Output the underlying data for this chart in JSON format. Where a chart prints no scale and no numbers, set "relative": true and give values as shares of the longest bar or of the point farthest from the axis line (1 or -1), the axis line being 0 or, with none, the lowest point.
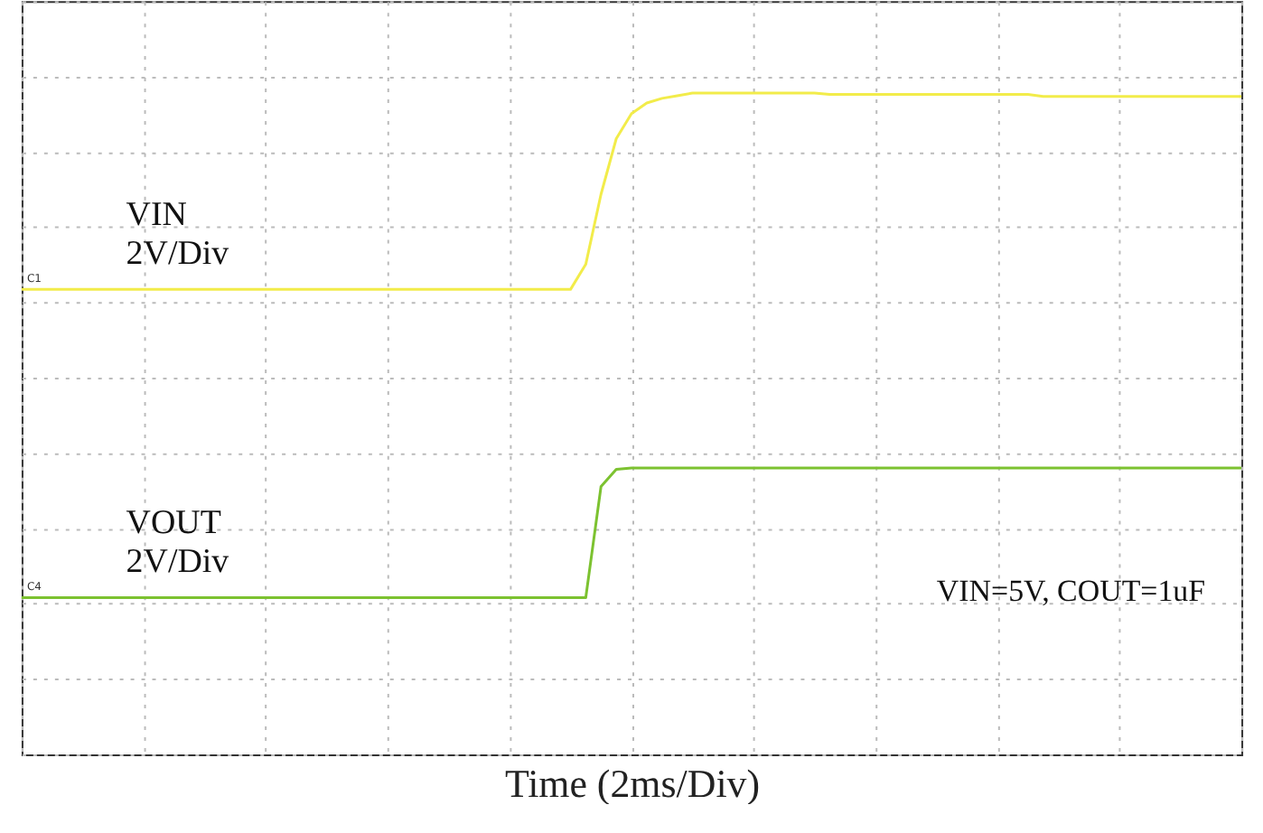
{
  "chart_data": {
    "type": "line",
    "relative": true,
    "xlabel": "Time (2ms/Div)",
    "categories": [
      null,
      null,
      null,
      null,
      null,
      null,
      null,
      null,
      null,
      null,
      null,
      null,
      null,
      null,
      null,
      null,
      null,
      null,
      null,
      null,
      null,
      null,
      null,
      null,
      null,
      null,
      null,
      null,
      null,
      null,
      null,
      null,
      null,
      null,
      null,
      null,
      null,
      null,
      null,
      null,
      null,
      null,
      null,
      null,
      null,
      null,
      null,
      null,
      null,
      null,
      null,
      null,
      null,
      null,
      null,
      null,
      null,
      null,
      null,
      null,
      null,
      null,
      null,
      null,
      null,
      null,
      null,
      null,
      null,
      null,
      null,
      null,
      null,
      null,
      null,
      null,
      null,
      null,
      null,
      null,
      null
    ],
    "grid": true,
    "line_style": "solid",
    "marker": "none",
    "series": [
      {
        "name": "VIN\n2V/Div",
        "color": "#f2ec4a",
        "values": [
          0.703,
          0.703,
          0.703,
          0.703,
          0.703,
          0.703,
          0.703,
          0.703,
          0.703,
          0.703,
          0.703,
          0.703,
          0.703,
          0.703,
          0.703,
          0.703,
          0.703,
          0.703,
          0.703,
          0.703,
          0.703,
          0.703,
          0.703,
          0.703,
          0.703,
          0.703,
          0.703,
          0.703,
          0.703,
          0.703,
          0.703,
          0.703,
          0.703,
          0.703,
          0.703,
          0.703,
          0.703,
          0.741,
          0.847,
          0.931,
          0.969,
          0.985,
          0.992,
          0.996,
          1,
          1,
          1,
          1,
          1,
          1,
          1,
          1,
          1,
          0.998,
          0.998,
          0.998,
          0.998,
          0.998,
          0.998,
          0.998,
          0.998,
          0.998,
          0.998,
          0.998,
          0.998,
          0.998,
          0.998,
          0.995,
          0.995,
          0.995,
          0.995,
          0.995,
          0.995,
          0.995,
          0.995,
          0.995,
          0.995,
          0.995,
          0.995,
          0.995,
          0.995
        ]
      },
      {
        "name": "VOUT\n2V/Div",
        "color": "#7cc230",
        "values": [
          0.237,
          0.237,
          0.237,
          0.237,
          0.237,
          0.237,
          0.237,
          0.237,
          0.237,
          0.237,
          0.237,
          0.237,
          0.237,
          0.237,
          0.237,
          0.237,
          0.237,
          0.237,
          0.237,
          0.237,
          0.237,
          0.237,
          0.237,
          0.237,
          0.237,
          0.237,
          0.237,
          0.237,
          0.237,
          0.237,
          0.237,
          0.237,
          0.237,
          0.237,
          0.237,
          0.237,
          0.237,
          0.237,
          0.405,
          0.431,
          0.433,
          0.433,
          0.433,
          0.433,
          0.433,
          0.433,
          0.433,
          0.433,
          0.433,
          0.433,
          0.433,
          0.433,
          0.433,
          0.433,
          0.433,
          0.433,
          0.433,
          0.433,
          0.433,
          0.433,
          0.433,
          0.433,
          0.433,
          0.433,
          0.433,
          0.433,
          0.433,
          0.433,
          0.433,
          0.433,
          0.433,
          0.433,
          0.433,
          0.433,
          0.433,
          0.433,
          0.433,
          0.433,
          0.433,
          0.433,
          0.433
        ]
      }
    ],
    "annotations": [
      "VIN=5V, COUT=1uF",
      {
        "text": "C1",
        "y": 0.703
      },
      {
        "text": "C4",
        "y": 0.237
      }
    ]
  }
}
